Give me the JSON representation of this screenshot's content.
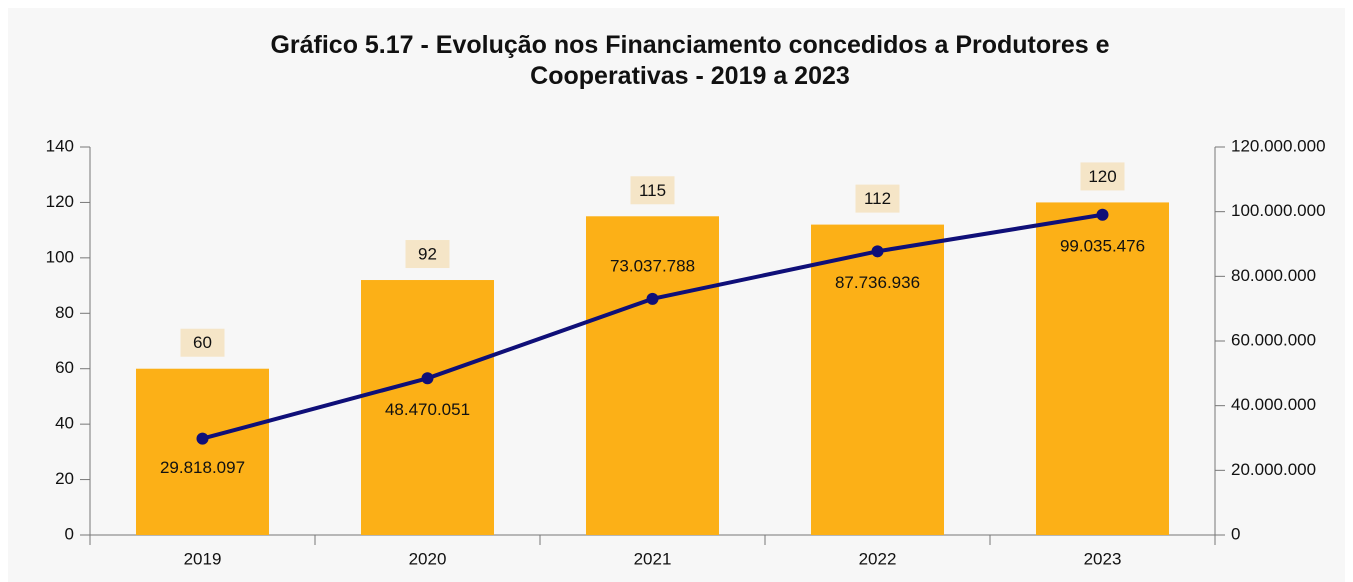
{
  "chart_data": {
    "type": "bar",
    "title": "Gráfico 5.17 - Evolução nos Financiamento concedidos a Produtores e Cooperativas - 2019 a 2023",
    "categories": [
      "2019",
      "2020",
      "2021",
      "2022",
      "2023"
    ],
    "series": [
      {
        "type": "bar",
        "color": "#fcb017",
        "values": [
          60,
          92,
          115,
          112,
          120
        ]
      },
      {
        "type": "line",
        "axis": "y2",
        "color": "#0f0f78",
        "values": [
          29818097,
          48470051,
          73037788,
          87736936,
          99035476
        ],
        "value_labels": [
          "29.818.097",
          "48.470.051",
          "73.037.788",
          "87.736.936",
          "99.035.476"
        ]
      }
    ],
    "ylim": [
      0,
      140
    ],
    "yticks": [
      0,
      20,
      40,
      60,
      80,
      100,
      120,
      140
    ],
    "y2lim": [
      0,
      120000000
    ],
    "y2ticks": [
      0,
      {
        "value": 20000000,
        "label": "20.000.000"
      },
      {
        "value": 40000000,
        "label": "40.000.000"
      },
      {
        "value": 60000000,
        "label": "60.000.000"
      },
      {
        "value": 80000000,
        "label": "80.000.000"
      },
      {
        "value": 100000000,
        "label": "100.000.000"
      },
      {
        "value": 120000000,
        "label": "120.000.000"
      }
    ],
    "grid": false
  }
}
